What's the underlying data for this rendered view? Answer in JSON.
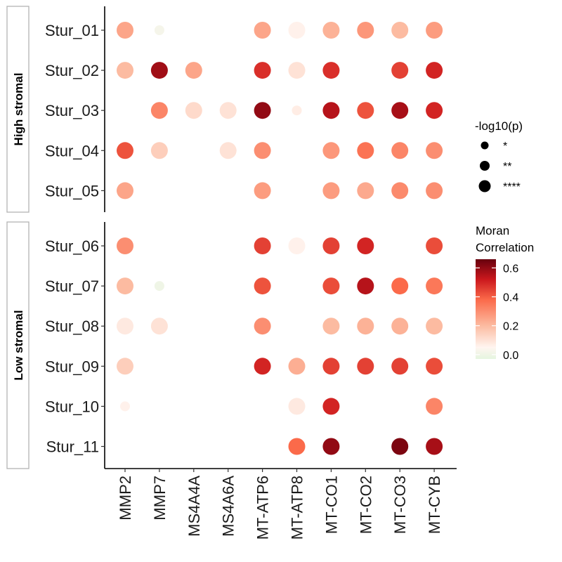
{
  "chart_data": {
    "type": "dotplot",
    "title": "",
    "xlabel": "",
    "ylabel": "",
    "genes": [
      "MMP2",
      "MMP7",
      "MS4A4A",
      "MS4A6A",
      "MT-ATP6",
      "MT-ATP8",
      "MT-CO1",
      "MT-CO2",
      "MT-CO3",
      "MT-CYB"
    ],
    "groups": [
      {
        "label": "High stromal",
        "samples": [
          {
            "name": "Stur_01",
            "values": [
              0.25,
              0.02,
              null,
              null,
              0.25,
              0.06,
              0.22,
              0.28,
              0.2,
              0.27
            ],
            "signif": [
              "****",
              "*",
              null,
              null,
              "****",
              "****",
              "****",
              "****",
              "****",
              "****"
            ]
          },
          {
            "name": "Stur_02",
            "values": [
              0.2,
              0.58,
              0.25,
              null,
              0.48,
              0.1,
              0.48,
              null,
              0.45,
              0.5
            ],
            "signif": [
              "****",
              "****",
              "****",
              null,
              "****",
              "****",
              "****",
              null,
              "****",
              "****"
            ]
          },
          {
            "name": "Stur_03",
            "values": [
              null,
              0.32,
              0.12,
              0.1,
              0.6,
              0.07,
              0.55,
              0.42,
              0.57,
              0.5
            ],
            "signif": [
              null,
              "****",
              "****",
              "****",
              "****",
              "*",
              "****",
              "****",
              "****",
              "****"
            ]
          },
          {
            "name": "Stur_04",
            "values": [
              0.42,
              0.15,
              null,
              0.1,
              0.3,
              null,
              0.28,
              0.36,
              0.32,
              0.3
            ],
            "signif": [
              "****",
              "****",
              null,
              "****",
              "****",
              null,
              "****",
              "****",
              "****",
              "****"
            ]
          },
          {
            "name": "Stur_05",
            "values": [
              0.25,
              null,
              null,
              null,
              0.27,
              null,
              0.27,
              0.24,
              0.31,
              0.3
            ],
            "signif": [
              "****",
              null,
              null,
              null,
              "****",
              null,
              "****",
              "****",
              "****",
              "****"
            ]
          }
        ]
      },
      {
        "label": "Low stromal",
        "samples": [
          {
            "name": "Stur_06",
            "values": [
              0.3,
              null,
              null,
              null,
              0.45,
              0.06,
              0.45,
              0.5,
              null,
              0.43
            ],
            "signif": [
              "****",
              null,
              null,
              null,
              "****",
              "****",
              "****",
              "****",
              null,
              "****"
            ]
          },
          {
            "name": "Stur_07",
            "values": [
              0.2,
              0.0,
              null,
              null,
              0.42,
              null,
              0.43,
              0.55,
              0.38,
              0.35
            ],
            "signif": [
              "****",
              "*",
              null,
              null,
              "****",
              null,
              "****",
              "****",
              "****",
              "****"
            ]
          },
          {
            "name": "Stur_08",
            "values": [
              0.08,
              0.1,
              null,
              null,
              0.3,
              null,
              0.2,
              0.22,
              0.22,
              0.2
            ],
            "signif": [
              "****",
              "****",
              null,
              null,
              "****",
              null,
              "****",
              "****",
              "****",
              "****"
            ]
          },
          {
            "name": "Stur_09",
            "values": [
              0.15,
              null,
              null,
              null,
              0.5,
              0.23,
              0.45,
              0.45,
              0.45,
              0.43
            ],
            "signif": [
              "****",
              null,
              null,
              null,
              "****",
              "****",
              "****",
              "****",
              "****",
              "****"
            ]
          },
          {
            "name": "Stur_10",
            "values": [
              0.06,
              null,
              null,
              null,
              null,
              0.08,
              0.5,
              null,
              null,
              0.32
            ],
            "signif": [
              "*",
              null,
              null,
              null,
              null,
              "****",
              "****",
              null,
              null,
              "****"
            ]
          },
          {
            "name": "Stur_11",
            "values": [
              null,
              null,
              null,
              null,
              null,
              0.38,
              0.6,
              null,
              0.63,
              0.57
            ],
            "signif": [
              null,
              null,
              null,
              null,
              null,
              "****",
              "****",
              null,
              "****",
              "****"
            ]
          }
        ]
      }
    ],
    "legend_size": {
      "title": "-log10(p)",
      "entries": [
        "*",
        "**",
        "****"
      ]
    },
    "legend_color": {
      "title_line1": "Moran",
      "title_line2": "Correlation",
      "range": [
        -0.03,
        0.66
      ],
      "ticks": [
        {
          "value": 0.0,
          "label": "0.0"
        },
        {
          "value": 0.2,
          "label": "0.2"
        },
        {
          "value": 0.4,
          "label": "0.4"
        },
        {
          "value": 0.6,
          "label": "0.6"
        }
      ],
      "colors": [
        "#e5f5e0",
        "#fff5f0",
        "#fcbba1",
        "#fb6a4a",
        "#cb181d",
        "#67000d"
      ]
    }
  }
}
